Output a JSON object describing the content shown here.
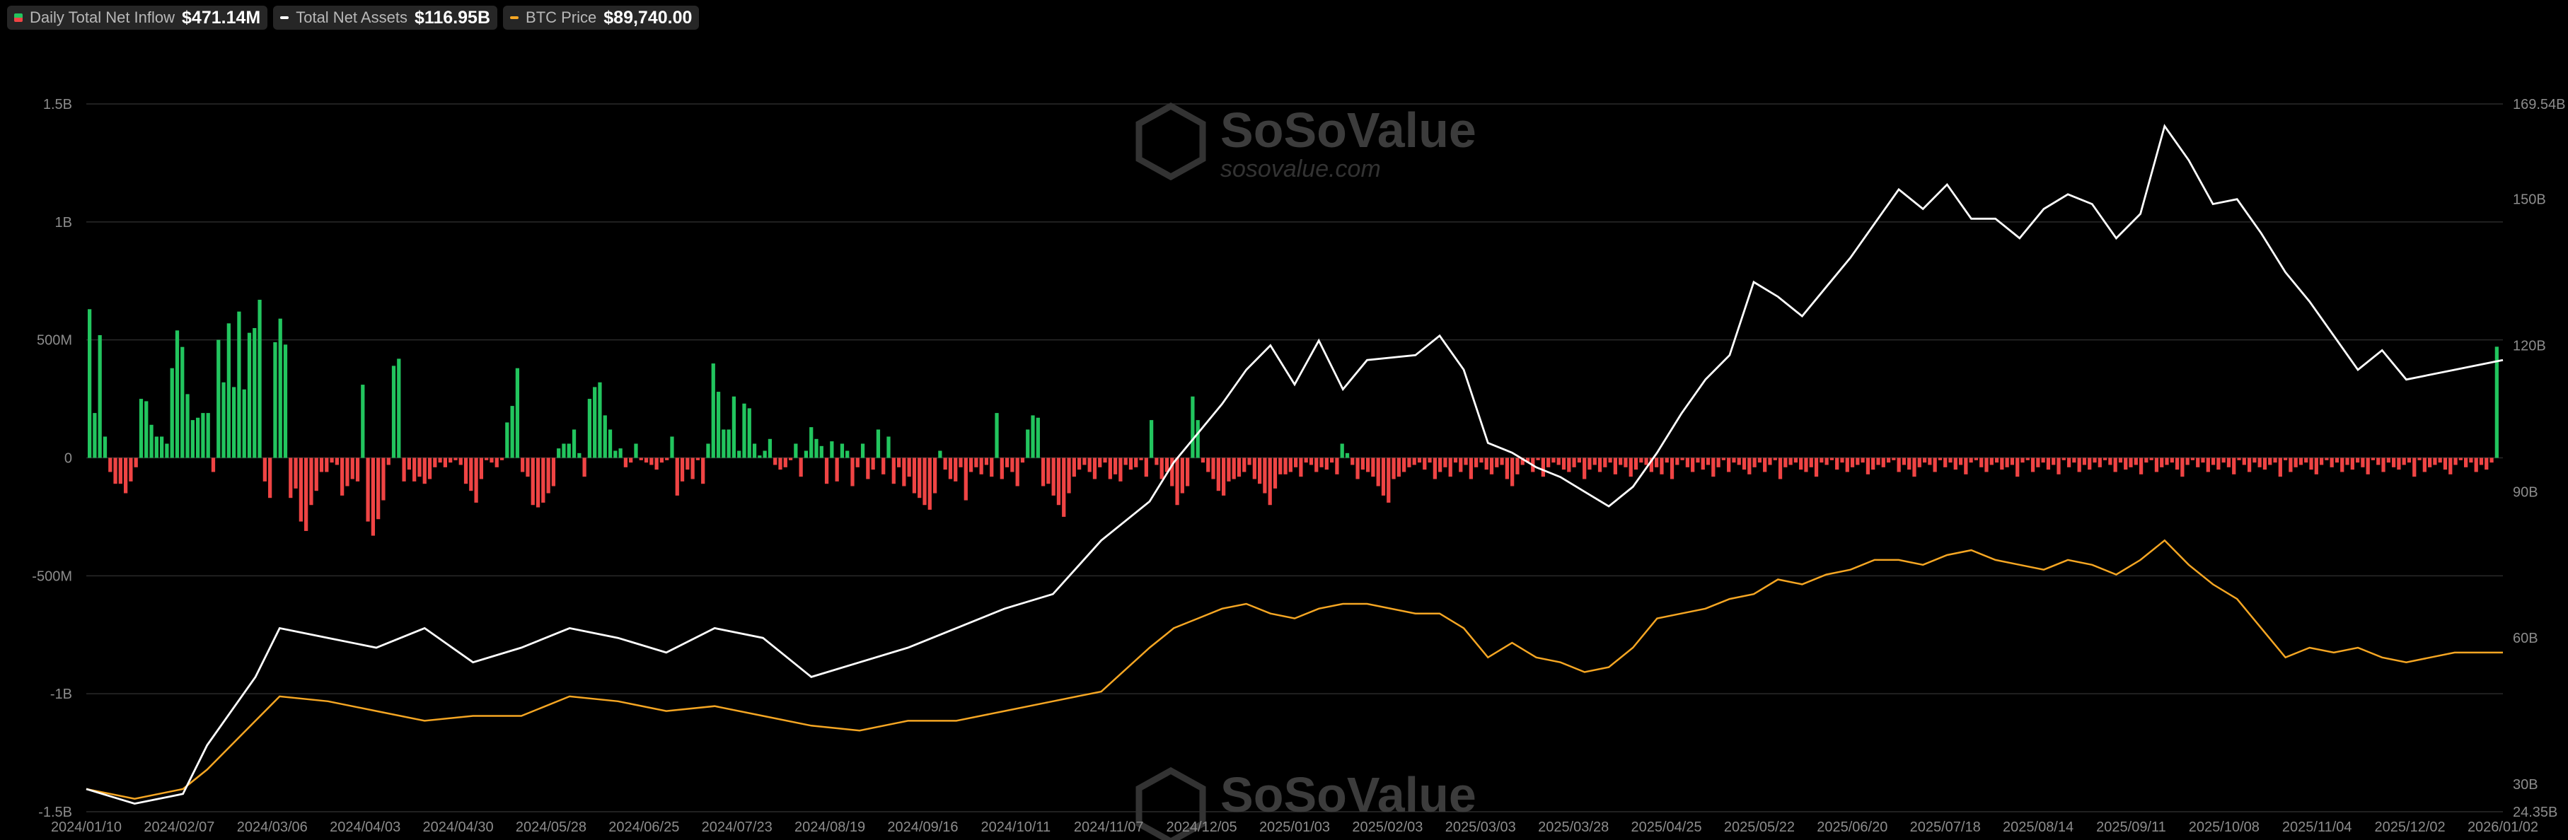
{
  "legend": [
    {
      "name": "Daily Total Net Inflow",
      "value": "$471.14M",
      "color": "#22c55e"
    },
    {
      "name": "Total Net Assets",
      "value": "$116.95B",
      "color": "#ffffff"
    },
    {
      "name": "BTC Price",
      "value": "$89,740.00",
      "color": "#f5a623"
    }
  ],
  "watermark": {
    "brand": "SoSoValue",
    "url": "sosovalue.com"
  },
  "chart_data": {
    "type": "bar",
    "x_ticks": [
      "2024/01/10",
      "2024/02/07",
      "2024/03/06",
      "2024/04/03",
      "2024/04/30",
      "2024/05/28",
      "2024/06/25",
      "2024/07/23",
      "2024/08/19",
      "2024/09/16",
      "2024/10/11",
      "2024/11/07",
      "2024/12/05",
      "2025/01/03",
      "2025/02/03",
      "2025/03/03",
      "2025/03/28",
      "2025/04/25",
      "2025/05/22",
      "2025/06/20",
      "2025/07/18",
      "2025/08/14",
      "2025/09/11",
      "2025/10/08",
      "2025/11/04",
      "2025/12/02",
      "2026/01/02"
    ],
    "y_left_ticks": [
      "1.5B",
      "1B",
      "500M",
      "0",
      "-500M",
      "-1B",
      "-1.5B"
    ],
    "y_left_values": [
      1500,
      1000,
      500,
      0,
      -500,
      -1000,
      -1500
    ],
    "y_left_range": [
      -1500,
      1500
    ],
    "y_right_ticks": [
      "169.54B",
      "150B",
      "120B",
      "90B",
      "60B",
      "30B",
      "24.35B"
    ],
    "y_right_values": [
      169.54,
      150,
      120,
      90,
      60,
      30,
      24.35
    ],
    "y_right_range": [
      24.35,
      169.54
    ],
    "grid": true,
    "series": [
      {
        "name": "Daily Total Net Inflow",
        "kind": "bar",
        "unit": "M USD",
        "values": [
          630,
          190,
          520,
          90,
          -60,
          -110,
          -110,
          -150,
          -100,
          -40,
          250,
          240,
          140,
          90,
          90,
          60,
          380,
          540,
          470,
          270,
          160,
          170,
          190,
          190,
          -60,
          500,
          320,
          570,
          300,
          620,
          290,
          530,
          550,
          670,
          -100,
          -170,
          490,
          590,
          480,
          -170,
          -130,
          -270,
          -310,
          -200,
          -140,
          -60,
          -60,
          -20,
          -30,
          -160,
          -120,
          -90,
          -100,
          310,
          -270,
          -330,
          -260,
          -180,
          -30,
          390,
          420,
          -100,
          -50,
          -100,
          -80,
          -110,
          -90,
          -40,
          -20,
          -40,
          -20,
          -10,
          -30,
          -110,
          -140,
          -190,
          -90,
          -10,
          -20,
          -40,
          -10,
          150,
          220,
          380,
          -60,
          -80,
          -200,
          -210,
          -190,
          -150,
          -120,
          40,
          60,
          60,
          120,
          20,
          -80,
          250,
          300,
          320,
          180,
          120,
          30,
          40,
          -40,
          -20,
          60,
          -10,
          -20,
          -30,
          -50,
          -20,
          -10,
          90,
          -160,
          -100,
          -50,
          -90,
          -10,
          -110,
          60,
          400,
          280,
          120,
          120,
          260,
          30,
          230,
          210,
          60,
          10,
          30,
          80,
          -30,
          -50,
          -40,
          -10,
          60,
          -80,
          30,
          130,
          80,
          50,
          -110,
          70,
          -100,
          60,
          30,
          -120,
          -40,
          60,
          -90,
          -50,
          120,
          -70,
          90,
          -110,
          -40,
          -120,
          -80,
          -150,
          -170,
          -200,
          -220,
          -150,
          30,
          -50,
          -90,
          -100,
          -40,
          -180,
          -60,
          -40,
          -70,
          -30,
          -80,
          190,
          -90,
          -40,
          -60,
          -120,
          -20,
          120,
          180,
          170,
          -120,
          -110,
          -160,
          -200,
          -250,
          -150,
          -80,
          -50,
          -30,
          -60,
          -90,
          -40,
          -20,
          -90,
          -70,
          -100,
          -30,
          -50,
          -40,
          -10,
          -80,
          160,
          -30,
          -90,
          -60,
          -120,
          -200,
          -150,
          -120,
          260,
          160,
          -20,
          -60,
          -90,
          -140,
          -160,
          -100,
          -90,
          -80,
          -60,
          -30,
          -90,
          -110,
          -150,
          -200,
          -130,
          -70,
          -70,
          -60,
          -40,
          -80,
          -20,
          -30,
          -60,
          -40,
          -50,
          -20,
          -70,
          60,
          20,
          -30,
          -90,
          -50,
          -60,
          -80,
          -120,
          -160,
          -190,
          -90,
          -80,
          -60,
          -40,
          -30,
          -20,
          -50,
          -20,
          -90,
          -60,
          -40,
          -80,
          -20,
          -60,
          -30,
          -90,
          -40,
          -20,
          -50,
          -70,
          -40,
          -30,
          -90,
          -120,
          -70,
          -30,
          -20,
          -60,
          -10,
          -80,
          -40,
          -20,
          -30,
          -50,
          -60,
          -40,
          -20,
          -90,
          -50,
          -30,
          -60,
          -40,
          -20,
          -70,
          -30,
          -40,
          -80,
          -50,
          -20,
          -30,
          -60,
          -40,
          -70,
          -20,
          -90,
          -30,
          -10,
          -40,
          -60,
          -20,
          -50,
          -30,
          -80,
          -40,
          -10,
          -60,
          -20,
          -30,
          -50,
          -70,
          -40,
          -20,
          -60,
          -30,
          -10,
          -90,
          -40,
          -30,
          -20,
          -50,
          -60,
          -40,
          -80,
          -20,
          -30,
          -10,
          -50,
          -20,
          -60,
          -40,
          -30,
          -20,
          -70,
          -50,
          -30,
          -40,
          -20,
          -10,
          -60,
          -30,
          -50,
          -80,
          -40,
          -20,
          -30,
          -60,
          -10,
          -40,
          -20,
          -50,
          -30,
          -70,
          -20,
          -10,
          -40,
          -60,
          -30,
          -20,
          -50,
          -40,
          -30,
          -80,
          -20,
          -10,
          -60,
          -40,
          -20,
          -50,
          -30,
          -70,
          -10,
          -40,
          -20,
          -60,
          -30,
          -50,
          -20,
          -40,
          -10,
          -30,
          -60,
          -20,
          -50,
          -40,
          -30,
          -70,
          -20,
          -10,
          -60,
          -40,
          -30,
          -20,
          -50,
          -80,
          -30,
          -10,
          -40,
          -20,
          -60,
          -30,
          -50,
          -20,
          -40,
          -70,
          -10,
          -30,
          -60,
          -20,
          -40,
          -50,
          -30,
          -20,
          -80,
          -10,
          -60,
          -40,
          -30,
          -20,
          -50,
          -70,
          -30,
          -10,
          -40,
          -20,
          -60,
          -30,
          -50,
          -20,
          -40,
          -70,
          -10,
          -30,
          -60,
          -20,
          -40,
          -50,
          -30,
          -20,
          -80,
          -10,
          -60,
          -40,
          -30,
          -20,
          -50,
          -70,
          -30,
          -10,
          -40,
          -20,
          -60,
          -30,
          -50,
          -20,
          471
        ]
      },
      {
        "name": "Total Net Assets",
        "kind": "line",
        "unit": "B USD"
      },
      {
        "name": "BTC Price",
        "kind": "line",
        "unit": "USD"
      }
    ]
  }
}
